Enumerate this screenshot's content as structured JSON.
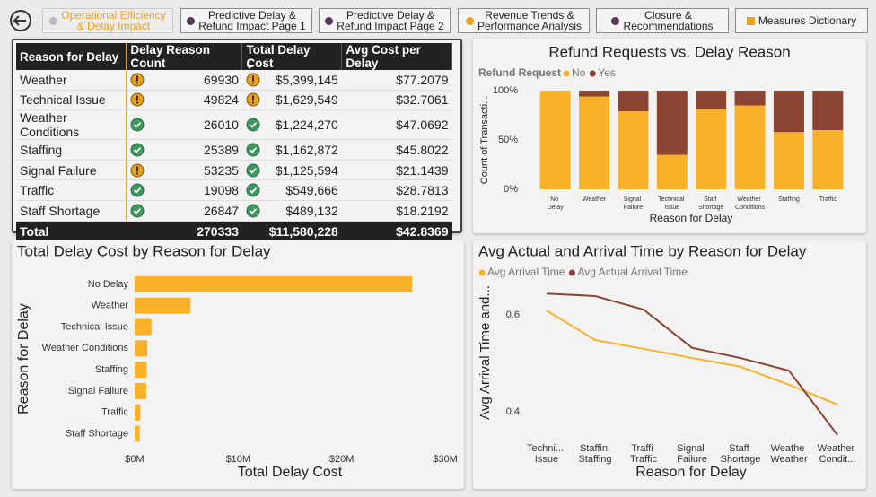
{
  "nav": [
    {
      "label": [
        "Operational Efficiency",
        "& Delay Impact"
      ]
    },
    {
      "label": [
        "Predictive Delay &",
        "Refund Impact Page 1"
      ]
    },
    {
      "label": [
        "Predictive Delay &",
        "Refund Impact Page 2"
      ]
    },
    {
      "label": [
        "Revenue Trends &",
        "Performance Analysis"
      ]
    },
    {
      "label": [
        "Closure &",
        "Recommendations"
      ]
    },
    {
      "label": [
        "Measures Dictionary"
      ]
    }
  ],
  "table": {
    "columns": [
      "Reason for Delay",
      "Delay Reason Count",
      "Total Delay Cost",
      "Avg Cost per Delay"
    ],
    "rows": [
      [
        "Weather",
        69930,
        "$5,399,145",
        "$77.2079"
      ],
      [
        "Technical Issue",
        49824,
        "$1,629,549",
        "$32.7061"
      ],
      [
        "Weather Conditions",
        26010,
        "$1,224,270",
        "$47.0692"
      ],
      [
        "Staffing",
        25389,
        "$1,162,872",
        "$45.8022"
      ],
      [
        "Signal Failure",
        53235,
        "$1,125,594",
        "$21.1439"
      ],
      [
        "Traffic",
        19098,
        "$549,666",
        "$28.7813"
      ],
      [
        "Staff Shortage",
        26847,
        "$489,132",
        "$18.2192"
      ]
    ],
    "total": [
      "Total",
      270333,
      "$11,580,228",
      "$42.8369"
    ]
  },
  "chart_data": [
    {
      "type": "bar",
      "stacked": true,
      "title": "Refund Requests vs. Delay Reason",
      "legend_title": "Refund Request",
      "x_label": "Reason for Delay",
      "y_label": "Count of Transacti...",
      "categories": [
        "No Delay",
        "Weather",
        "Signal Failure",
        "Technical Issue",
        "Staff Shortage",
        "Weather Conditions",
        "Staffing",
        "Traffic"
      ],
      "series": [
        {
          "name": "No",
          "color": "#f9b12a",
          "values": [
            100,
            94,
            79,
            35,
            81,
            85,
            58,
            60
          ]
        },
        {
          "name": "Yes",
          "color": "#8b4332",
          "values": [
            0,
            6,
            21,
            65,
            19,
            15,
            42,
            40
          ]
        }
      ],
      "ylim": [
        0,
        100
      ],
      "yticks": [
        {
          "value": 0,
          "label": "0%"
        },
        {
          "value": 50,
          "label": "50%"
        },
        {
          "value": 100,
          "label": "100%"
        }
      ]
    },
    {
      "type": "bar",
      "horizontal": true,
      "title": "Total Delay Cost by Reason for Delay",
      "x_label": "Total Delay Cost",
      "y_label": "Reason for Delay",
      "categories": [
        "No Delay",
        "Weather",
        "Technical Issue",
        "Weather Conditions",
        "Staffing",
        "Signal Failure",
        "Traffic",
        "Staff Shortage"
      ],
      "values": [
        26800000,
        5399145,
        1629549,
        1224270,
        1162872,
        1125594,
        549666,
        489132
      ],
      "color": "#f9b12a",
      "xlim": [
        0,
        30000000
      ],
      "xticks": [
        {
          "value": 0,
          "label": "$0M"
        },
        {
          "value": 10000000,
          "label": "$10M"
        },
        {
          "value": 20000000,
          "label": "$20M"
        },
        {
          "value": 30000000,
          "label": "$30M"
        }
      ]
    },
    {
      "type": "line",
      "title": "Avg Actual and Arrival Time by Reason for Delay",
      "x_label": "Reason for Delay",
      "y_label": "Avg Arrival Time and...",
      "categories": [
        "Techni... Issue",
        "Staffing",
        "Traffic",
        "Signal Failure",
        "Staff Shortage",
        "Weather",
        "Weather Condit..."
      ],
      "series": [
        {
          "name": "Avg Arrival Time",
          "color": "#f9b12a",
          "values": [
            0.609,
            0.548,
            0.53,
            0.511,
            0.493,
            0.456,
            0.415
          ]
        },
        {
          "name": "Avg Actual Arrival Time",
          "color": "#8b4332",
          "values": [
            0.644,
            0.639,
            0.611,
            0.532,
            0.511,
            0.485,
            0.352
          ]
        }
      ],
      "ylim": [
        0.34,
        0.7
      ],
      "yticks": [
        0.4,
        0.6
      ]
    }
  ]
}
